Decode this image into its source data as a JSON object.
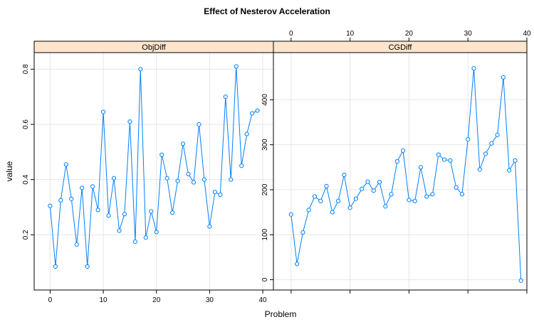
{
  "chart_data": {
    "type": "line",
    "title": "Effect of Nesterov Acceleration",
    "xlabel": "Problem",
    "ylabel": "value",
    "colors": {
      "series": "#0080ff",
      "strip_bg": "#ffe5cc",
      "grid": "#e6e6e6",
      "frame": "#000000"
    },
    "grid": true,
    "x_ticks": [
      0,
      10,
      20,
      30,
      40
    ],
    "panels": [
      {
        "strip_label": "ObjDiff",
        "x_axis_position": "bottom",
        "y_axis_position": "left",
        "xlim": [
          -3,
          42
        ],
        "ylim": [
          0.0,
          0.86
        ],
        "y_ticks": [
          0.2,
          0.4,
          0.6,
          0.8
        ],
        "y_tick_labels": [
          "0.2",
          "0.4",
          "0.6",
          "0.8"
        ],
        "x": [
          0,
          1,
          2,
          3,
          4,
          5,
          6,
          7,
          8,
          9,
          10,
          11,
          12,
          13,
          14,
          15,
          16,
          17,
          18,
          19,
          20,
          21,
          22,
          23,
          24,
          25,
          26,
          27,
          28,
          29,
          30,
          31,
          32,
          33,
          34,
          35,
          36,
          37,
          38,
          39
        ],
        "values": [
          0.305,
          0.085,
          0.325,
          0.455,
          0.33,
          0.165,
          0.37,
          0.085,
          0.375,
          0.29,
          0.645,
          0.27,
          0.405,
          0.215,
          0.275,
          0.61,
          0.175,
          0.8,
          0.19,
          0.285,
          0.21,
          0.49,
          0.405,
          0.28,
          0.395,
          0.53,
          0.42,
          0.39,
          0.6,
          0.4,
          0.23,
          0.355,
          0.345,
          0.7,
          0.4,
          0.81,
          0.45,
          0.565,
          0.64,
          0.65
        ]
      },
      {
        "strip_label": "CGDiff",
        "x_axis_position": "top",
        "y_axis_position": "left",
        "xlim": [
          -3,
          40
        ],
        "ylim": [
          -23,
          505
        ],
        "y_ticks": [
          0,
          100,
          200,
          300,
          400
        ],
        "y_tick_labels": [
          "0",
          "100",
          "200",
          "300",
          "400"
        ],
        "x": [
          0,
          1,
          2,
          3,
          4,
          5,
          6,
          7,
          8,
          9,
          10,
          11,
          12,
          13,
          14,
          15,
          16,
          17,
          18,
          19,
          20,
          21,
          22,
          23,
          24,
          25,
          26,
          27,
          28,
          29,
          30,
          31,
          32,
          33,
          34,
          35,
          36,
          37,
          38,
          39
        ],
        "values": [
          145,
          35,
          105,
          155,
          185,
          175,
          208,
          150,
          175,
          233,
          160,
          180,
          202,
          218,
          198,
          217,
          163,
          190,
          263,
          287,
          177,
          175,
          250,
          185,
          190,
          278,
          267,
          265,
          205,
          190,
          312,
          470,
          245,
          280,
          303,
          322,
          450,
          243,
          265,
          -2
        ]
      }
    ]
  }
}
